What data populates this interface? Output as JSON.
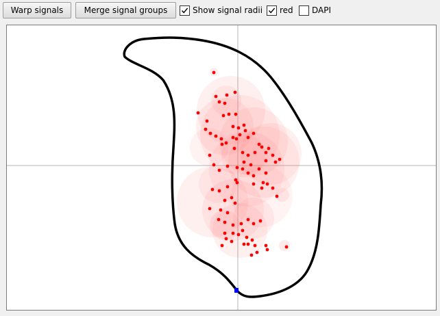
{
  "toolbar": {
    "warp_label": "Warp signals",
    "merge_label": "Merge signal groups",
    "checkboxes": [
      {
        "label": "Show signal radii",
        "checked": true
      },
      {
        "label": "red",
        "checked": true
      },
      {
        "label": "DAPI",
        "checked": false
      }
    ]
  },
  "colors": {
    "signal": "#ff0000",
    "radius_fill": "#ff6a6a",
    "outline": "#000000",
    "crosshair": "#b4b4b4",
    "marker": "#0000ff"
  },
  "icons": {
    "checkmark": "checkmark-icon",
    "marker": "blue-square-marker"
  }
}
